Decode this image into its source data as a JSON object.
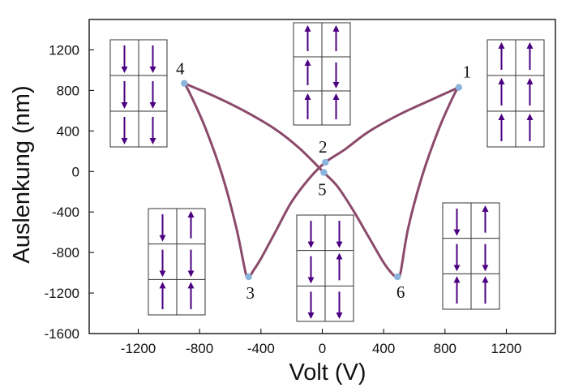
{
  "chart_data": {
    "type": "line",
    "title": "",
    "xlabel": "Volt (V)",
    "ylabel": "Auslenkung (nm)",
    "xlim": [
      -1520,
      1520
    ],
    "ylim": [
      -1600,
      1500
    ],
    "xticks": [
      -1200,
      -800,
      -400,
      0,
      400,
      800,
      1200
    ],
    "yticks": [
      -1600,
      -1200,
      -800,
      -400,
      0,
      400,
      800,
      1200
    ],
    "grid": false,
    "line_color": "#8b4a6b",
    "marker_color": "#8ab4dc",
    "arrow_color": "#4b0082",
    "points": [
      {
        "label": "1",
        "x": 890,
        "y": 830
      },
      {
        "label": "2",
        "x": 20,
        "y": 90
      },
      {
        "label": "3",
        "x": -480,
        "y": -1040
      },
      {
        "label": "4",
        "x": -900,
        "y": 870
      },
      {
        "label": "5",
        "x": 10,
        "y": -10
      },
      {
        "label": "6",
        "x": 490,
        "y": -1040
      }
    ],
    "series": [
      {
        "x": [
          890,
          700,
          500,
          300,
          150,
          20,
          -80,
          -200,
          -300,
          -400,
          -450,
          -470,
          -480,
          -500,
          -560,
          -650,
          -760,
          -860,
          -900
        ],
        "y": [
          830,
          700,
          560,
          390,
          220,
          90,
          -60,
          -300,
          -580,
          -860,
          -980,
          -1030,
          -1040,
          -1000,
          -560,
          -50,
          420,
          760,
          870
        ]
      },
      {
        "x": [
          -900,
          -700,
          -500,
          -300,
          -150,
          10,
          100,
          200,
          300,
          400,
          450,
          470,
          490,
          510,
          560,
          650,
          760,
          860,
          890
        ],
        "y": [
          870,
          740,
          590,
          410,
          230,
          -10,
          -150,
          -380,
          -640,
          -900,
          -1000,
          -1030,
          -1040,
          -1000,
          -560,
          -50,
          420,
          760,
          830
        ]
      }
    ],
    "domain_boxes": [
      {
        "id": "box-state-4",
        "arrows": [
          "down",
          "down",
          "down",
          "down",
          "down",
          "down"
        ]
      },
      {
        "id": "box-state-2",
        "arrows": [
          "up",
          "up",
          "up",
          "down",
          "up",
          "up"
        ]
      },
      {
        "id": "box-state-1",
        "arrows": [
          "up",
          "up",
          "up",
          "up",
          "up",
          "up"
        ]
      },
      {
        "id": "box-state-3",
        "arrows": [
          "down",
          "up",
          "down",
          "down",
          "up",
          "up"
        ]
      },
      {
        "id": "box-state-5",
        "arrows": [
          "down",
          "down",
          "down",
          "up",
          "down",
          "down"
        ]
      },
      {
        "id": "box-state-6",
        "arrows": [
          "down",
          "up",
          "down",
          "down",
          "up",
          "up"
        ]
      }
    ]
  }
}
